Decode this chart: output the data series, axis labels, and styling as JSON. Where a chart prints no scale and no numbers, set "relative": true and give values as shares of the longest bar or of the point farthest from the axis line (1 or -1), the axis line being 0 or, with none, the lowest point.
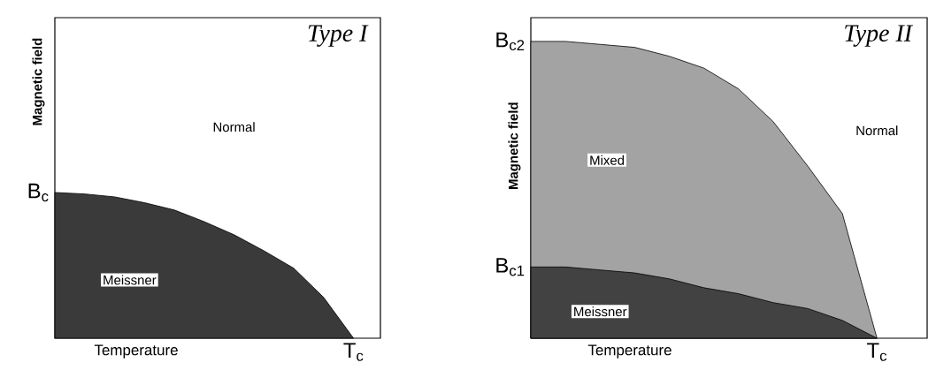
{
  "chart_data": [
    {
      "type": "area",
      "title": "Type I",
      "xlabel": "Temperature",
      "ylabel": "Magnetic field",
      "relative": true,
      "categories": [
        null,
        null,
        null,
        null,
        null,
        null,
        null,
        null,
        null,
        null,
        null,
        null
      ],
      "series": [
        {
          "color": "#3a3a3a",
          "values": [
            1,
            0.99,
            0.97,
            0.93,
            0.88,
            0.8,
            0.71,
            0.6,
            0.48,
            0.28,
            0,
            null
          ]
        }
      ],
      "annotations": [
        "B$_{c}$",
        "T$_{c}$",
        "Normal",
        "Meissner"
      ]
    },
    {
      "type": "area",
      "title": "Type II",
      "xlabel": "Temperature",
      "ylabel": "Magnetic field",
      "relative": true,
      "categories": [
        null,
        null,
        null,
        null,
        null,
        null,
        null,
        null,
        null,
        null,
        null,
        null
      ],
      "series": [
        {
          "color": "#a3a3a3",
          "values": [
            1,
            1,
            0.99,
            0.98,
            0.95,
            0.91,
            0.84,
            0.73,
            0.58,
            0.42,
            0,
            null
          ]
        },
        {
          "color": "#424242",
          "values": [
            0.24,
            0.24,
            0.23,
            0.22,
            0.2,
            0.17,
            0.15,
            0.12,
            0.1,
            0.06,
            0,
            null
          ]
        }
      ],
      "annotations": [
        "B$_{c2}$",
        "B$_{c1}$",
        "T$_{c}$",
        "Normal",
        "Mixed",
        "Meissner"
      ]
    }
  ]
}
